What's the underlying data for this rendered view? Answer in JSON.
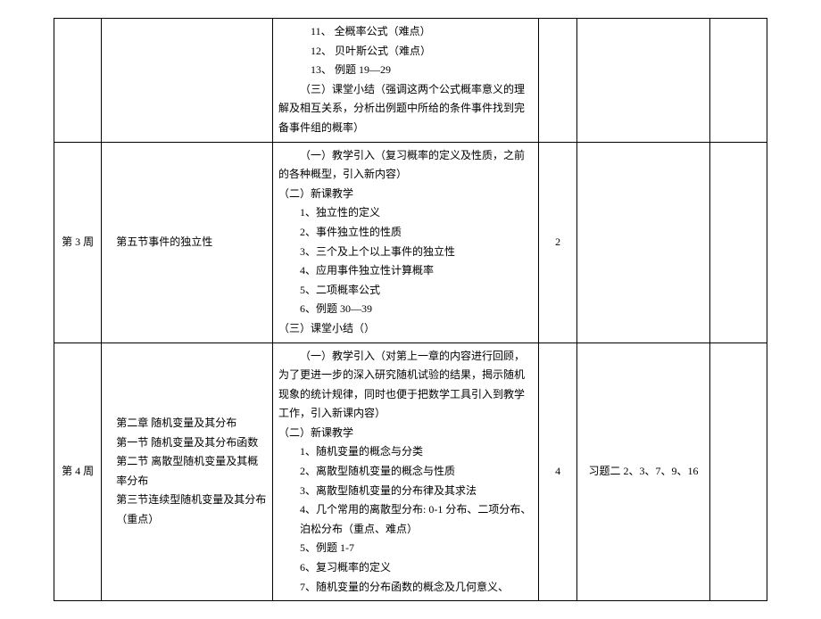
{
  "table": {
    "border_color": "#000000",
    "background_color": "#ffffff",
    "text_color": "#000000",
    "font_family": "SimSun",
    "font_size": 12,
    "columns": {
      "week_width": 50,
      "section_width": 180,
      "content_width": 280,
      "hours_width": 40,
      "exercise_width": 140,
      "note_width": 60
    },
    "rows": [
      {
        "week": "",
        "section": "",
        "content": {
          "items": [
            "11、  全概率公式（难点）",
            "12、  贝叶斯公式（难点）",
            "13、  例题 19—29"
          ],
          "spacer": " ",
          "summary": "（三）课堂小结（强调这两个公式概率意义的理解及相互关系，分析出例题中所给的条件事件找到完备事件组的概率）"
        },
        "hours": "",
        "exercise": "",
        "note": ""
      },
      {
        "week": "第 3 周",
        "section": "第五节事件的独立性",
        "content": {
          "intro": "（一）教学引入（复习概率的定义及性质，之前的各种概型，引入新内容）",
          "subhead": "（二）新课教学",
          "items": [
            "1、独立性的定义",
            "2、事件独立性的性质",
            "3、三个及上个以上事件的独立性",
            "4、应用事件独立性计算概率",
            "5、二项概率公式",
            "6、例题 30—39"
          ],
          "summary": "（三）课堂小结（）"
        },
        "hours": "2",
        "exercise": "",
        "note": ""
      },
      {
        "week": "第 4 周",
        "section_lines": [
          "   第二章  随机变量及其分布",
          "第一节  随机变量及其分布函数",
          "第二节  离散型随机变量及其概率分布",
          "第三节连续型随机变量及其分布（重点）"
        ],
        "content": {
          "intro": "（一）教学引入（对第上一章的内容进行回顾，为了更进一步的深入研究随机试验的结果，揭示随机现象的统计规律，同时也便于把数学工具引入到教学工作，引入新课内容）",
          "subhead": "（二）新课教学",
          "items": [
            "1、随机变量的概念与分类",
            "2、离散型随机变量的概念与性质",
            "3、离散型随机变量的分布律及其求法",
            "4、几个常用的离散型分布: 0-1 分布、二项分布、泊松分布（重点、难点）",
            "5、例题 1-7",
            "6、复习概率的定义",
            "7、随机变量的分布函数的概念及几何意义、"
          ]
        },
        "hours": "4",
        "exercise": "习题二  2、3、7、9、16",
        "note": ""
      }
    ]
  }
}
